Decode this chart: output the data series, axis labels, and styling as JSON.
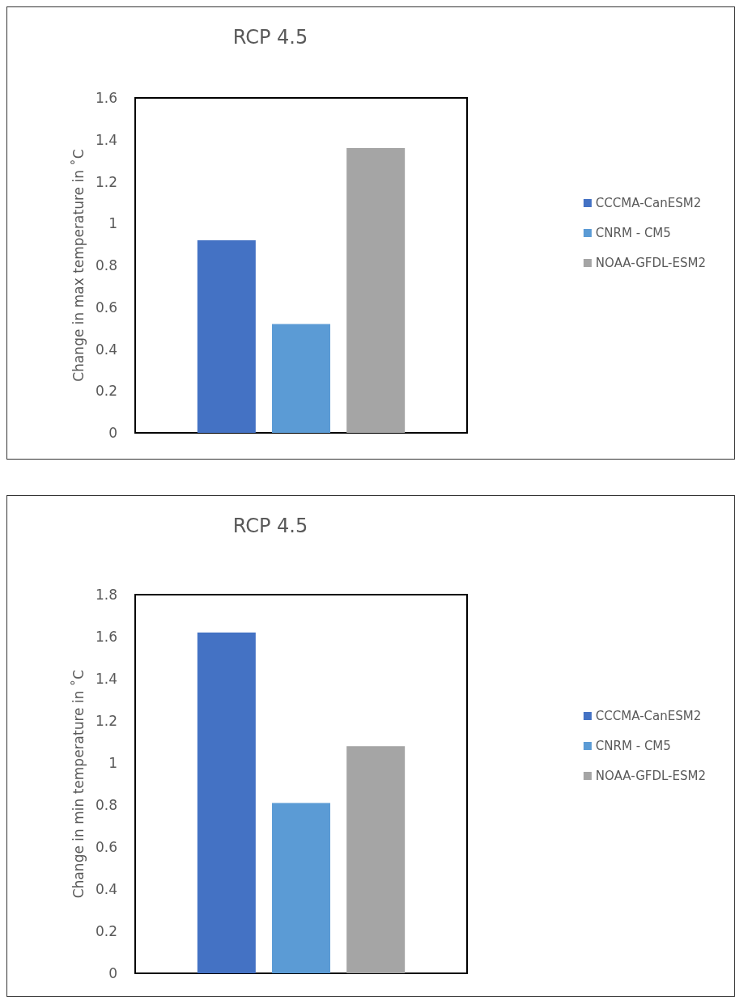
{
  "chart_data": [
    {
      "type": "bar",
      "title": "RCP 4.5",
      "ylabel": "Change in max temperature in ˚C",
      "categories": [
        null
      ],
      "series": [
        {
          "name": "CCCMA-CanESM2",
          "color": "#4472c4",
          "values": [
            0.92
          ]
        },
        {
          "name": "CNRM - CM5",
          "color": "#5b9bd5",
          "values": [
            0.52
          ]
        },
        {
          "name": "NOAA-GFDL-ESM2",
          "color": "#a5a5a5",
          "values": [
            1.36
          ]
        }
      ],
      "ylim": [
        0,
        1.6
      ],
      "yticks": [
        0,
        0.2,
        0.4,
        0.6,
        0.8,
        1,
        1.2,
        1.4,
        1.6
      ],
      "grid": false,
      "legend": "right"
    },
    {
      "type": "bar",
      "title": "RCP 4.5",
      "ylabel": "Change in min temperature in ˚C",
      "categories": [
        null
      ],
      "series": [
        {
          "name": "CCCMA-CanESM2",
          "color": "#4472c4",
          "values": [
            1.62
          ]
        },
        {
          "name": "CNRM - CM5",
          "color": "#5b9bd5",
          "values": [
            0.81
          ]
        },
        {
          "name": "NOAA-GFDL-ESM2",
          "color": "#a5a5a5",
          "values": [
            1.08
          ]
        }
      ],
      "ylim": [
        0,
        1.8
      ],
      "yticks": [
        0,
        0.2,
        0.4,
        0.6,
        0.8,
        1,
        1.2,
        1.4,
        1.6,
        1.8
      ],
      "grid": false,
      "legend": "right"
    }
  ]
}
